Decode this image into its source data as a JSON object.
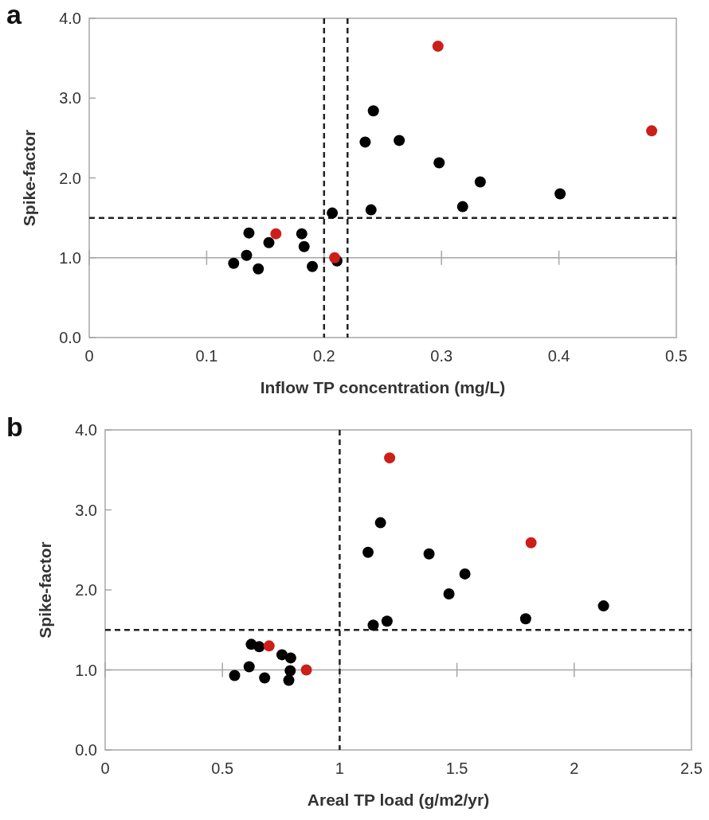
{
  "chart_data": [
    {
      "type": "scatter",
      "xlabel": "Inflow TP concentration (mg/L)",
      "ylabel": "Spike-factor",
      "annotations": [
        "a"
      ],
      "xlim": [
        0,
        0.5
      ],
      "xticks": [
        0,
        0.1,
        0.2,
        0.3,
        0.4,
        0.5
      ],
      "ylim": [
        0,
        4
      ],
      "yticks": [
        {
          "value": 0,
          "label": "0.0"
        },
        {
          "value": 1,
          "label": "1.0"
        },
        {
          "value": 2,
          "label": "2.0"
        },
        {
          "value": 3,
          "label": "3.0"
        },
        {
          "value": 4,
          "label": "4.0"
        }
      ],
      "grid": false,
      "marker": "circle",
      "ref_lines": [
        {
          "axis": "y",
          "value": 1,
          "color": "#a6a6a6",
          "line_style": "solid"
        },
        {
          "axis": "x",
          "value": 0.2,
          "color": "#222222",
          "line_style": "dashed"
        },
        {
          "axis": "x",
          "value": 0.22,
          "color": "#222222",
          "line_style": "dashed"
        },
        {
          "axis": "y",
          "value": 1.5,
          "color": "#222222",
          "line_style": "dashed"
        }
      ],
      "series": [
        {
          "color": "#000000",
          "x": [
            0.136,
            0.153,
            0.134,
            0.123,
            0.144,
            0.181,
            0.183,
            0.19,
            0.207,
            0.211,
            0.242,
            0.235,
            0.24,
            0.264,
            0.298,
            0.333,
            0.318,
            0.401
          ],
          "values": [
            1.31,
            1.19,
            1.03,
            0.93,
            0.86,
            1.3,
            1.14,
            0.89,
            1.56,
            0.96,
            2.84,
            2.45,
            1.6,
            2.47,
            2.19,
            1.95,
            1.64,
            1.8
          ]
        },
        {
          "color": "#cc1f1a",
          "x": [
            0.159,
            0.209,
            0.297,
            0.479
          ],
          "values": [
            1.3,
            1.0,
            3.65,
            2.59
          ]
        }
      ]
    },
    {
      "type": "scatter",
      "xlabel": "Areal TP load (g/m2/yr)",
      "ylabel": "Spike-factor",
      "annotations": [
        "b"
      ],
      "xlim": [
        0,
        2.5
      ],
      "xticks": [
        0,
        0.5,
        1,
        1.5,
        2,
        2.5
      ],
      "ylim": [
        0,
        4
      ],
      "yticks": [
        {
          "value": 0,
          "label": "0.0"
        },
        {
          "value": 1,
          "label": "1.0"
        },
        {
          "value": 2,
          "label": "2.0"
        },
        {
          "value": 3,
          "label": "3.0"
        },
        {
          "value": 4,
          "label": "4.0"
        }
      ],
      "grid": false,
      "marker": "circle",
      "ref_lines": [
        {
          "axis": "y",
          "value": 1,
          "color": "#a6a6a6",
          "line_style": "solid"
        },
        {
          "axis": "x",
          "value": 1,
          "color": "#222222",
          "line_style": "dashed"
        },
        {
          "axis": "y",
          "value": 1.5,
          "color": "#222222",
          "line_style": "dashed"
        }
      ],
      "series": [
        {
          "color": "#000000",
          "x": [
            0.623,
            0.657,
            0.754,
            0.791,
            0.614,
            0.552,
            0.68,
            0.789,
            0.783,
            1.174,
            1.121,
            1.143,
            1.202,
            1.381,
            1.534,
            1.466,
            1.793,
            2.125
          ],
          "values": [
            1.32,
            1.29,
            1.19,
            1.15,
            1.04,
            0.93,
            0.9,
            0.99,
            0.87,
            2.84,
            2.47,
            1.56,
            1.61,
            2.45,
            2.2,
            1.95,
            1.64,
            1.8
          ]
        },
        {
          "color": "#cc1f1a",
          "x": [
            0.699,
            0.858,
            1.213,
            1.816
          ],
          "values": [
            1.3,
            1.0,
            3.65,
            2.59
          ]
        }
      ]
    }
  ]
}
